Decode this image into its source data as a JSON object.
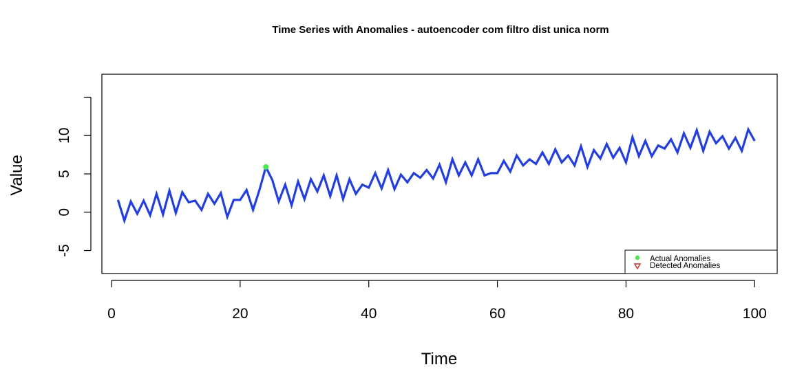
{
  "chart_data": {
    "type": "line",
    "title": "Time Series with Anomalies - autoencoder com filtro dist unica norm",
    "xlabel": "Time",
    "ylabel": "Value",
    "xlim": [
      -1.5,
      103.5
    ],
    "ylim": [
      -8,
      18
    ],
    "x_ticks": [
      0,
      20,
      40,
      60,
      80,
      100
    ],
    "x_tick_labels": [
      "0",
      "20",
      "40",
      "60",
      "80",
      "100"
    ],
    "y_ticks": [
      -5,
      0,
      5,
      10,
      15
    ],
    "y_tick_labels": [
      "-5",
      "0",
      "5",
      "10",
      ""
    ],
    "grid": false,
    "legend_position": "bottom-right",
    "series": [
      {
        "name": "Time Series",
        "color": "#1f3cf5",
        "x": [
          1,
          2,
          3,
          4,
          5,
          6,
          7,
          8,
          9,
          10,
          11,
          12,
          13,
          14,
          15,
          16,
          17,
          18,
          19,
          20,
          21,
          22,
          23,
          24,
          25,
          26,
          27,
          28,
          29,
          30,
          31,
          32,
          33,
          34,
          35,
          36,
          37,
          38,
          39,
          40,
          41,
          42,
          43,
          44,
          45,
          46,
          47,
          48,
          49,
          50,
          51,
          52,
          53,
          54,
          55,
          56,
          57,
          58,
          59,
          60,
          61,
          62,
          63,
          64,
          65,
          66,
          67,
          68,
          69,
          70,
          71,
          72,
          73,
          74,
          75,
          76,
          77,
          78,
          79,
          80,
          81,
          82,
          83,
          84,
          85,
          86,
          87,
          88,
          89,
          90,
          91,
          92,
          93,
          94,
          95,
          96,
          97,
          98,
          99,
          100
        ],
        "values": [
          1.6,
          -1.1,
          1.4,
          -0.2,
          1.5,
          -0.4,
          2.4,
          -0.3,
          2.8,
          -0.1,
          2.6,
          1.3,
          1.5,
          0.3,
          2.4,
          1.1,
          2.5,
          -0.6,
          1.6,
          1.6,
          2.9,
          0.3,
          2.9,
          5.9,
          4.2,
          1.4,
          3.6,
          0.9,
          4.0,
          1.7,
          4.3,
          2.7,
          4.8,
          2.1,
          4.8,
          1.7,
          4.3,
          2.4,
          3.6,
          3.2,
          5.1,
          3.1,
          5.5,
          3.0,
          4.9,
          3.9,
          5.1,
          4.5,
          5.5,
          4.4,
          6.2,
          3.9,
          6.9,
          4.8,
          6.5,
          4.8,
          6.9,
          4.8,
          5.1,
          5.1,
          6.7,
          5.3,
          7.4,
          6.1,
          6.9,
          6.3,
          7.8,
          6.3,
          8.2,
          6.5,
          7.4,
          6.1,
          8.6,
          5.9,
          8.1,
          7.0,
          8.9,
          7.1,
          8.4,
          6.5,
          9.8,
          7.3,
          9.3,
          7.3,
          8.7,
          8.3,
          9.5,
          7.8,
          10.3,
          8.4,
          10.7,
          8.0,
          10.5,
          9.0,
          9.9,
          8.3,
          9.7,
          8.0,
          10.8,
          9.3
        ]
      },
      {
        "name": "Actual Anomalies",
        "color": "#3df03d",
        "x": [
          24
        ],
        "values": [
          5.9
        ]
      },
      {
        "name": "Detected Anomalies",
        "color": "#e8261f",
        "x": [],
        "values": []
      }
    ],
    "legend": [
      {
        "label": "Actual Anomalies",
        "symbol": "filled-circle",
        "color": "#3df03d"
      },
      {
        "label": "Detected Anomalies",
        "symbol": "open-triangle-down",
        "color": "#e8261f"
      }
    ]
  }
}
